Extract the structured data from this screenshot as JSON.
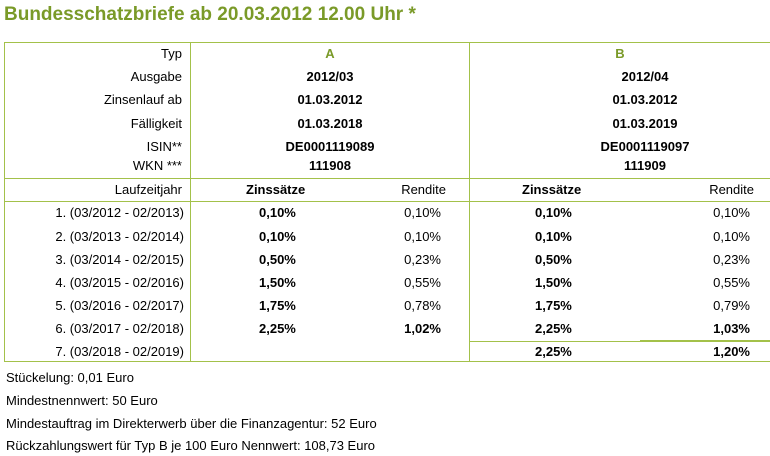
{
  "title": "Bundesschatzbriefe ab 20.03.2012  12.00 Uhr *",
  "header_labels": [
    "Typ",
    "Ausgabe",
    "Zinsenlauf ab",
    "Fälligkeit",
    "ISIN**",
    "WKN ***"
  ],
  "typeA": {
    "typ": "A",
    "ausgabe": "2012/03",
    "zinsenlauf": "01.03.2012",
    "faelligkeit": "01.03.2018",
    "isin": "DE0001119089",
    "wkn": "111908"
  },
  "typeB": {
    "typ": "B",
    "ausgabe": "2012/04",
    "zinsenlauf": "01.03.2012",
    "faelligkeit": "01.03.2019",
    "isin": "DE0001119097",
    "wkn": "111909"
  },
  "column_headers": {
    "laufzeitjahr": "Laufzeitjahr",
    "zinssaetze": "Zinssätze",
    "rendite": "Rendite"
  },
  "rows": [
    {
      "year": "1. (03/2012 - 02/2013)",
      "a_zins": "0,10%",
      "a_rendite": "0,10%",
      "b_zins": "0,10%",
      "b_rendite": "0,10%"
    },
    {
      "year": "2. (03/2013 - 02/2014)",
      "a_zins": "0,10%",
      "a_rendite": "0,10%",
      "b_zins": "0,10%",
      "b_rendite": "0,10%"
    },
    {
      "year": "3. (03/2014 - 02/2015)",
      "a_zins": "0,50%",
      "a_rendite": "0,23%",
      "b_zins": "0,50%",
      "b_rendite": "0,23%"
    },
    {
      "year": "4. (03/2015 - 02/2016)",
      "a_zins": "1,50%",
      "a_rendite": "0,55%",
      "b_zins": "1,50%",
      "b_rendite": "0,55%"
    },
    {
      "year": "5. (03/2016 - 02/2017)",
      "a_zins": "1,75%",
      "a_rendite": "0,78%",
      "b_zins": "1,75%",
      "b_rendite": "0,79%"
    },
    {
      "year": "6. (03/2017 - 02/2018)",
      "a_zins": "2,25%",
      "a_rendite": "1,02%",
      "b_zins": "2,25%",
      "b_rendite": "1,03%"
    },
    {
      "year": "7. (03/2018 - 02/2019)",
      "a_zins": "",
      "a_rendite": "",
      "b_zins": "2,25%",
      "b_rendite": "1,20%"
    }
  ],
  "notes": [
    "Stückelung: 0,01 Euro",
    "Mindestnennwert: 50 Euro",
    "Mindestauftrag im Direkterwerb über die Finanzagentur: 52 Euro",
    "Rückzahlungswert für Typ B je 100 Euro Nennwert: 108,73 Euro"
  ],
  "colors": {
    "accent": "#7a9a28",
    "border": "#a3c14a"
  }
}
